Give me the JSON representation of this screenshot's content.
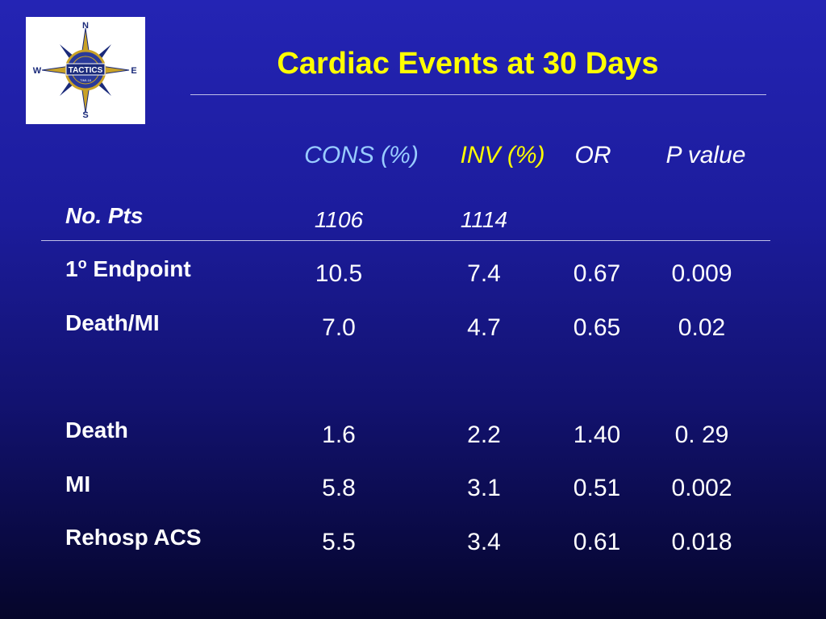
{
  "logo": {
    "text": "TACTICS",
    "subtext": "TIMI-18",
    "north": "N",
    "south": "S",
    "east": "E",
    "west": "W"
  },
  "title": "Cardiac Events at 30 Days",
  "colors": {
    "title": "#ffff00",
    "cons_header": "#99ccff",
    "inv_header": "#ffff00",
    "text": "#ffffff",
    "background_top": "#2424b4",
    "background_bottom": "#05052a"
  },
  "table": {
    "headers": {
      "cons": "CONS (%)",
      "inv": "INV (%)",
      "or": "OR",
      "p": "P value"
    },
    "rows": [
      {
        "label": "No. Pts",
        "cons": "1106",
        "inv": "1114",
        "or": "",
        "p": ""
      },
      {
        "label_num": "1",
        "label_sup": "o",
        "label": " Endpoint",
        "cons": "10.5",
        "inv": "7.4",
        "or": "0.67",
        "p": "0.009"
      },
      {
        "label": "Death/MI",
        "cons": "7.0",
        "inv": "4.7",
        "or": "0.65",
        "p": "0.02"
      },
      {
        "label": "Death",
        "cons": "1.6",
        "inv": "2.2",
        "or": "1.40",
        "p": "0. 29"
      },
      {
        "label": "MI",
        "cons": "5.8",
        "inv": "3.1",
        "or": "0.51",
        "p": "0.002"
      },
      {
        "label": "Rehosp ACS",
        "cons": "5.5",
        "inv": "3.4",
        "or": "0.61",
        "p": "0.018"
      }
    ]
  }
}
